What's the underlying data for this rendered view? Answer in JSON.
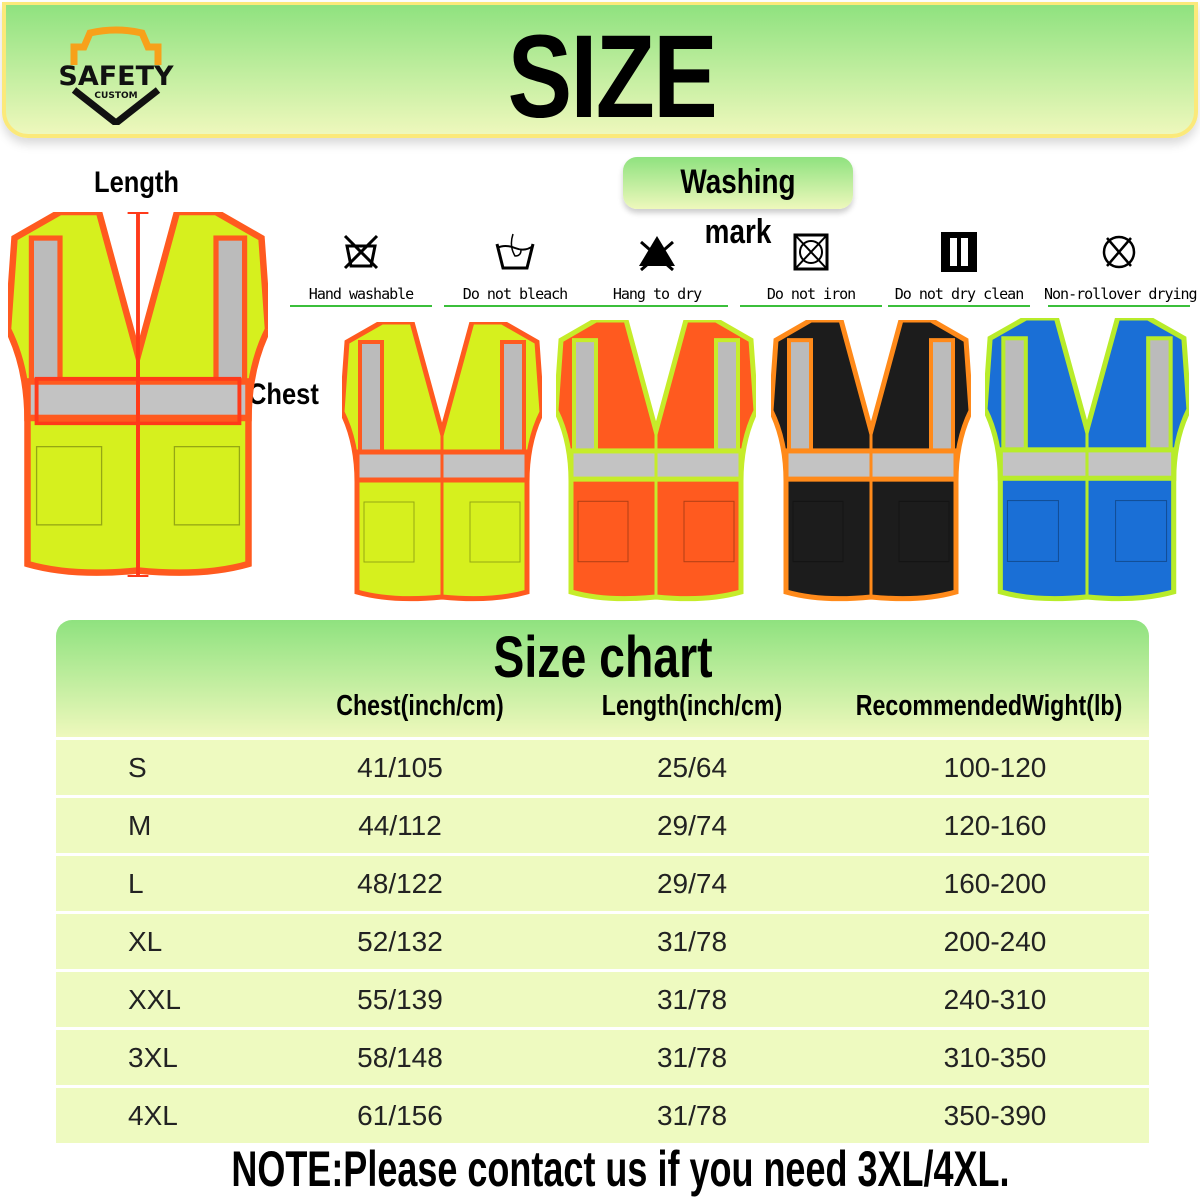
{
  "header": {
    "logo_text": "SAFETY",
    "logo_subtext": "CUSTOM",
    "title": "SIZE"
  },
  "measure": {
    "length_label": "Length",
    "chest_label": "Chest"
  },
  "washing": {
    "title": "Washing mark",
    "items": [
      {
        "label": "Hand washable",
        "icon": "hand-wash-crossed-icon"
      },
      {
        "label": "Do not bleach",
        "icon": "hand-wash-tub-icon"
      },
      {
        "label": "Hang to dry",
        "icon": "triangle-crossed-icon"
      },
      {
        "label": "Do not iron",
        "icon": "tumble-dry-crossed-icon"
      },
      {
        "label": "Do not dry clean",
        "icon": "line-dry-icon"
      },
      {
        "label": "Non-rollover drying",
        "icon": "circle-crossed-icon"
      }
    ]
  },
  "vests": [
    {
      "color": "yellow",
      "body": "#d6f01e",
      "trim": "#ff5a1f"
    },
    {
      "color": "orange",
      "body": "#ff5a1f",
      "trim": "#c6ec2a"
    },
    {
      "color": "black",
      "body": "#1c1c1c",
      "trim": "#ff8a1a"
    },
    {
      "color": "blue",
      "body": "#1a6fd6",
      "trim": "#b8ec2a"
    }
  ],
  "size_chart": {
    "title": "Size chart",
    "columns": [
      "",
      "Chest(inch/cm)",
      "Length(inch/cm)",
      "RecommendedWight(lb)"
    ],
    "rows": [
      [
        "S",
        "41/105",
        "25/64",
        "100-120"
      ],
      [
        "M",
        "44/112",
        "29/74",
        "120-160"
      ],
      [
        "L",
        "48/122",
        "29/74",
        "160-200"
      ],
      [
        "XL",
        "52/132",
        "31/78",
        "200-240"
      ],
      [
        "XXL",
        "55/139",
        "31/78",
        "240-310"
      ],
      [
        "3XL",
        "58/148",
        "31/78",
        "310-350"
      ],
      [
        "4XL",
        "61/156",
        "31/78",
        "350-390"
      ]
    ]
  },
  "note": "NOTE:Please contact us if you need 3XL/4XL."
}
